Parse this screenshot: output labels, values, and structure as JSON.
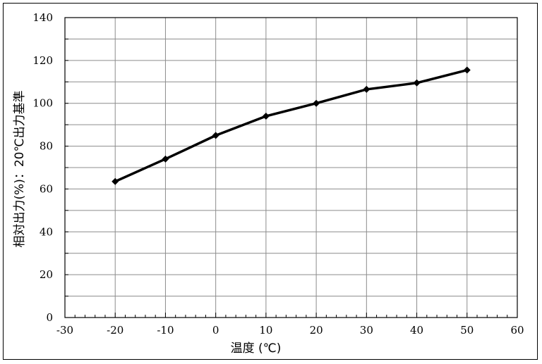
{
  "chart_data": {
    "type": "line",
    "title": "",
    "xlabel": "温度 (℃)",
    "ylabel": "相対出力(%)：20℃出力基準",
    "xlim": [
      -30,
      60
    ],
    "ylim": [
      0,
      140
    ],
    "x_ticks": [
      -30,
      -20,
      -10,
      0,
      10,
      20,
      30,
      40,
      50,
      60
    ],
    "y_ticks": [
      0,
      20,
      40,
      60,
      80,
      100,
      120,
      140
    ],
    "grid": true,
    "legend": "none",
    "series": [
      {
        "x": [
          -20,
          -10,
          0,
          10,
          20,
          30,
          40,
          50
        ],
        "y": [
          63.5,
          74,
          85,
          94,
          100,
          106.5,
          109.5,
          115.5
        ],
        "color": "#000000",
        "marker": "diamond"
      }
    ]
  }
}
